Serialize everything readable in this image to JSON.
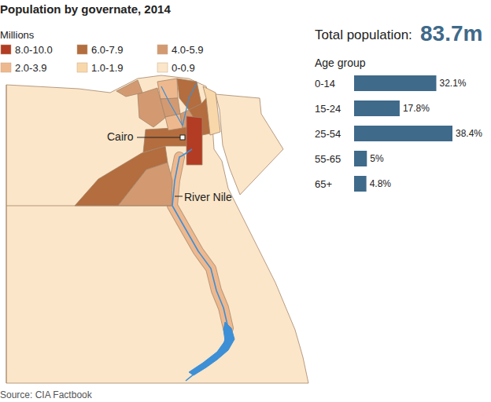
{
  "title": "Population by governate, 2014",
  "source": "Source: CIA Factbook",
  "map": {
    "legend_title": "Millions",
    "classes": [
      {
        "label": "8.0-10.0",
        "color": "#b23c24"
      },
      {
        "label": "6.0-7.9",
        "color": "#b36d3e"
      },
      {
        "label": "4.0-5.9",
        "color": "#d39a72"
      },
      {
        "label": "2.0-3.9",
        "color": "#eeb88e"
      },
      {
        "label": "1.0-1.9",
        "color": "#f8d8aa"
      },
      {
        "label": "0-0.9",
        "color": "#fbe6c9"
      }
    ],
    "regions": [
      "0-0.9",
      "0-0.9",
      "2.0-3.9",
      "6.0-7.9",
      "6.0-7.9",
      "4.0-5.9",
      "4.0-5.9",
      "4.0-5.9",
      "2.0-3.9",
      "4.0-5.9",
      "6.0-7.9",
      "6.0-7.9",
      "2.0-3.9",
      "4.0-5.9",
      "1.0-1.9",
      "8.0-10.0"
    ],
    "labels": [
      "Cairo",
      "River Nile"
    ]
  },
  "total": {
    "label": "Total population:",
    "value": "83.7m"
  },
  "chart_data": {
    "type": "bar",
    "orientation": "horizontal",
    "title": "Age group",
    "categories": [
      "0-14",
      "15-24",
      "25-54",
      "55-65",
      "65+"
    ],
    "values": [
      32.1,
      17.8,
      38.4,
      5,
      4.8
    ],
    "value_labels": [
      "32.1%",
      "17.8%",
      "38.4%",
      "5%",
      "4.8%"
    ],
    "color": "#3f6a8a",
    "xlim": [
      0,
      38.4
    ],
    "data_labels": true,
    "tick_labels": "y",
    "grid": false
  }
}
